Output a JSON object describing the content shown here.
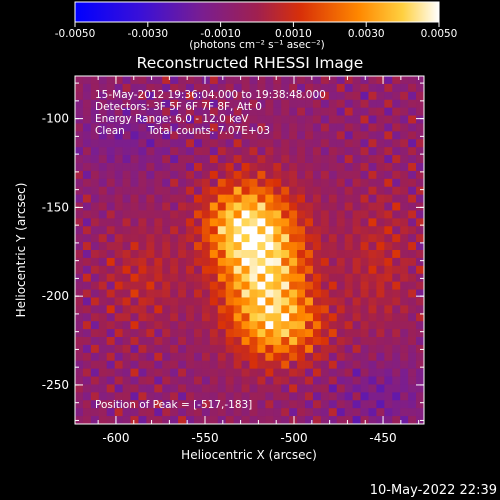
{
  "colorbar": {
    "ticks": [
      "-0.0050",
      "-0.0030",
      "-0.0010",
      "0.0010",
      "0.0030",
      "0.0050"
    ],
    "unit_label": "(photons cm⁻² s⁻¹ asec⁻²)"
  },
  "plot": {
    "title": "Reconstructed RHESSI Image",
    "xlabel": "Heliocentric X (arcsec)",
    "ylabel": "Heliocentric Y (arcsec)",
    "x_ticks": [
      "-600",
      "-550",
      "-500",
      "-450"
    ],
    "y_ticks": [
      "-100",
      "-150",
      "-200",
      "-250"
    ]
  },
  "annotation": {
    "time_range": "15-May-2012 19:36:04.000 to 19:38:48.000",
    "detectors": "Detectors: 3F 5F 6F 7F 8F, Att 0",
    "energy": "Energy Range: 6.0 - 12.0 keV",
    "method": "Clean",
    "total_counts": "Total counts: 7.07E+03",
    "peak": "Position of Peak = [-517,-183]"
  },
  "footer": {
    "timestamp": "10-May-2022 22:39"
  },
  "chart_data": {
    "type": "heatmap",
    "title": "Reconstructed RHESSI Image",
    "xlabel": "Heliocentric X (arcsec)",
    "ylabel": "Heliocentric Y (arcsec)",
    "xlim": [
      -623,
      -427
    ],
    "ylim": [
      -272,
      -76
    ],
    "colorbar_range": [
      -0.005,
      0.005
    ],
    "colormap": [
      "#0000ff",
      "#5b18a8",
      "#7a1e90",
      "#d03010",
      "#ff8000",
      "#ffe060",
      "#ffffff"
    ],
    "peak_position": [
      -517,
      -183
    ],
    "sources": [
      {
        "x": -517,
        "y": -183,
        "sigma_x": 18,
        "sigma_y": 28,
        "amp": 0.0047
      },
      {
        "x": -532,
        "y": -158,
        "sigma_x": 15,
        "sigma_y": 16,
        "amp": 0.0028
      },
      {
        "x": -505,
        "y": -218,
        "sigma_x": 18,
        "sigma_y": 14,
        "amp": 0.0025
      },
      {
        "x": -585,
        "y": -190,
        "sigma_x": 16,
        "sigma_y": 22,
        "amp": 0.0012
      },
      {
        "x": -452,
        "y": -180,
        "sigma_x": 14,
        "sigma_y": 28,
        "amp": 0.0012
      },
      {
        "x": -595,
        "y": -110,
        "sigma_x": 20,
        "sigma_y": 14,
        "amp": -0.0008
      },
      {
        "x": -450,
        "y": -255,
        "sigma_x": 18,
        "sigma_y": 14,
        "amp": -0.0009
      }
    ]
  }
}
